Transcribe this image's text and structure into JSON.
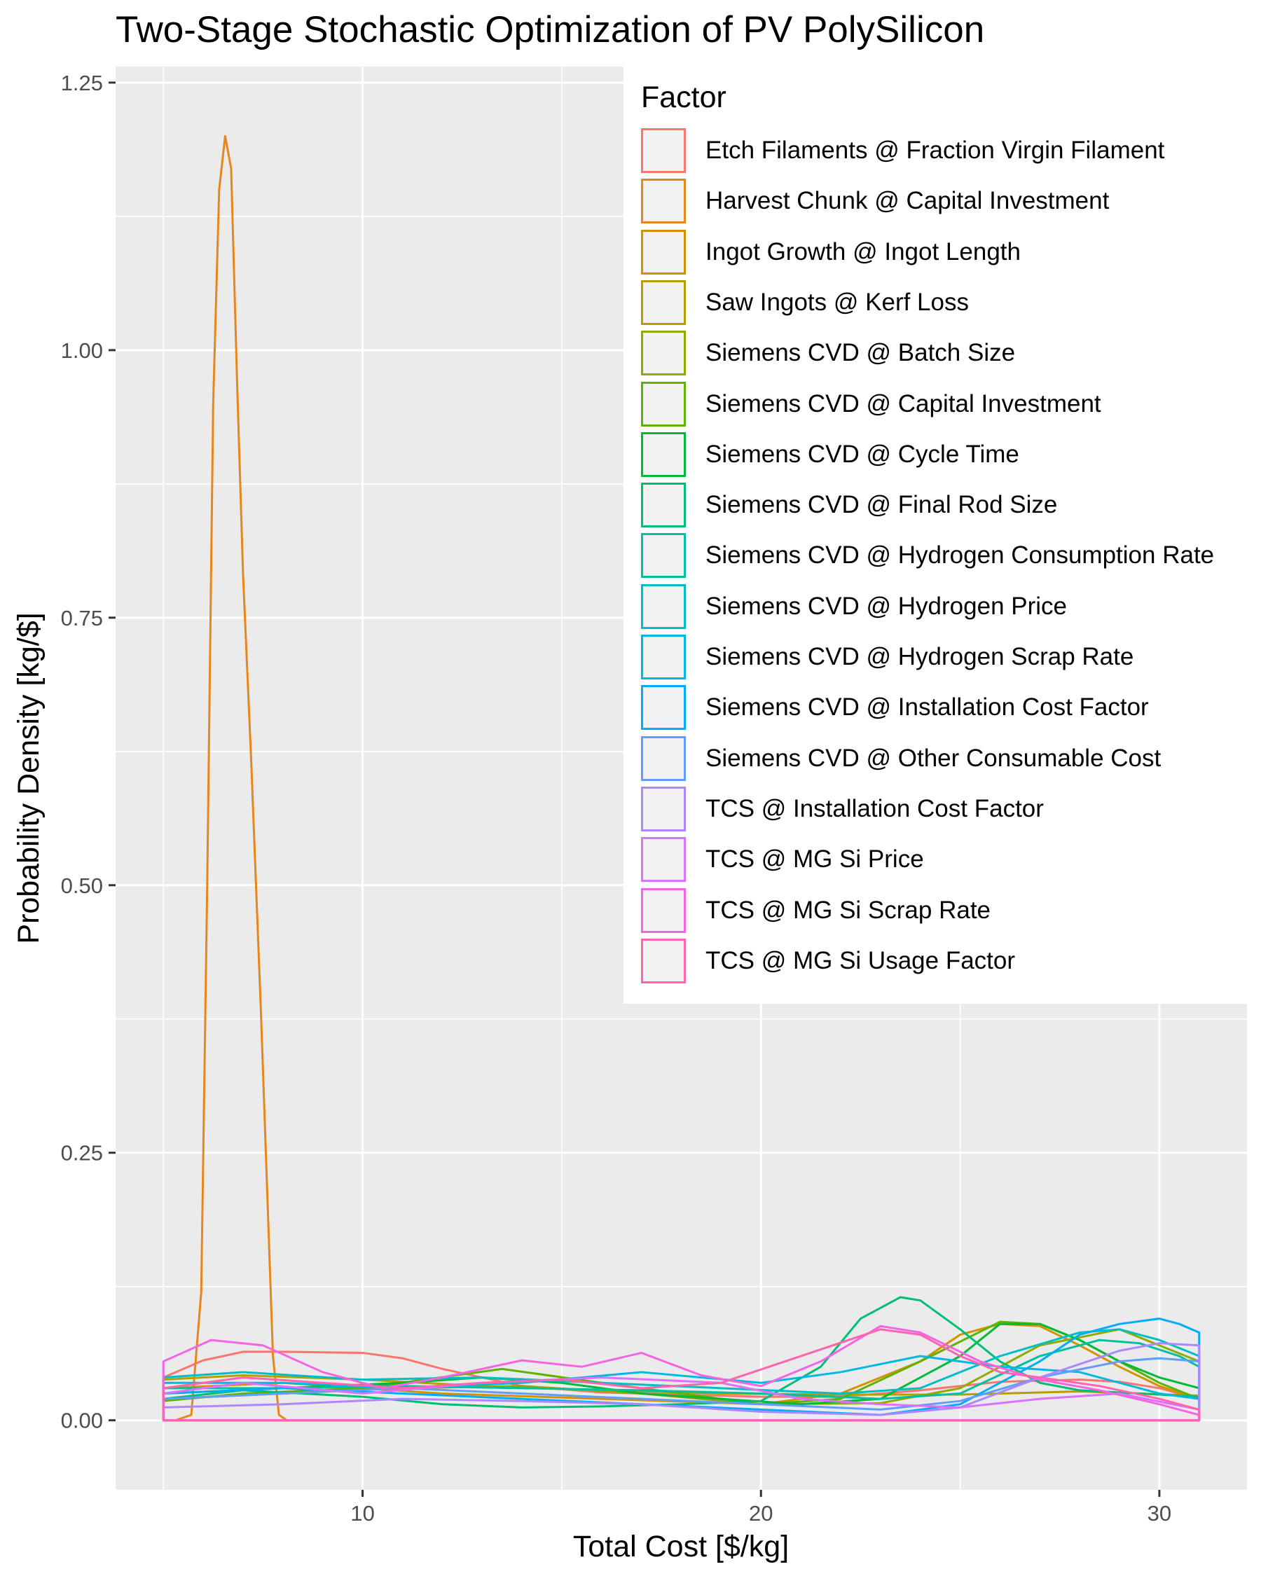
{
  "chart_data": {
    "type": "line",
    "title": "Two-Stage Stochastic Optimization of PV PolySilicon",
    "xlabel": "Total Cost [$/kg]",
    "ylabel": "Probability Density [kg/$]",
    "xlim": [
      3.8,
      32.2
    ],
    "ylim": [
      -0.065,
      1.265
    ],
    "x_ticks": [
      10,
      20,
      30
    ],
    "x_tick_labels": [
      "10",
      "20",
      "30"
    ],
    "y_ticks": [
      0,
      0.25,
      0.5,
      0.75,
      1.0,
      1.25
    ],
    "y_tick_labels": [
      "0.00",
      "0.25",
      "0.50",
      "0.75",
      "1.00",
      "1.25"
    ],
    "grid": true,
    "legend_title": "Factor",
    "legend_position": "top-right",
    "series": [
      {
        "name": "Etch Filaments @ Fraction Virgin Filament",
        "color": "#F8766D",
        "x": [
          5,
          6,
          7,
          8,
          10,
          11,
          12,
          14,
          16,
          18,
          20,
          22,
          24,
          26,
          28,
          29,
          30,
          31
        ],
        "y": [
          0.04,
          0.056,
          0.064,
          0.064,
          0.063,
          0.058,
          0.048,
          0.032,
          0.026,
          0.024,
          0.022,
          0.022,
          0.028,
          0.036,
          0.038,
          0.036,
          0.03,
          0.02
        ]
      },
      {
        "name": "Harvest Chunk @ Capital Investment",
        "color": "#E7861B",
        "x": [
          5.3,
          5.7,
          5.95,
          6.1,
          6.25,
          6.4,
          6.55,
          6.7,
          6.85,
          7.0,
          7.2,
          7.45,
          7.6,
          7.75,
          7.9,
          8.1
        ],
        "y": [
          0.0,
          0.005,
          0.12,
          0.5,
          0.95,
          1.15,
          1.2,
          1.17,
          0.97,
          0.79,
          0.62,
          0.38,
          0.22,
          0.06,
          0.005,
          0.0
        ]
      },
      {
        "name": "Ingot Growth @ Ingot Length",
        "color": "#D39200",
        "x": [
          5,
          8,
          12,
          16,
          20,
          22,
          24,
          25,
          26,
          27,
          28,
          29,
          30,
          31
        ],
        "y": [
          0.03,
          0.035,
          0.025,
          0.02,
          0.015,
          0.025,
          0.055,
          0.08,
          0.09,
          0.088,
          0.07,
          0.05,
          0.032,
          0.02
        ]
      },
      {
        "name": "Saw Ingots @ Kerf Loss",
        "color": "#B79F00",
        "x": [
          5,
          7,
          10,
          13,
          16,
          19,
          22,
          25,
          28,
          31
        ],
        "y": [
          0.038,
          0.042,
          0.038,
          0.032,
          0.028,
          0.025,
          0.024,
          0.024,
          0.027,
          0.023
        ]
      },
      {
        "name": "Siemens CVD @ Batch Size",
        "color": "#93AA00",
        "x": [
          5,
          8,
          11,
          14,
          17,
          20,
          23,
          25,
          27,
          29,
          30,
          31
        ],
        "y": [
          0.02,
          0.025,
          0.03,
          0.032,
          0.025,
          0.015,
          0.016,
          0.03,
          0.07,
          0.085,
          0.07,
          0.055
        ]
      },
      {
        "name": "Siemens CVD @ Capital Investment",
        "color": "#5EB300",
        "x": [
          5,
          7,
          10,
          13.5,
          16,
          20,
          22,
          24,
          26,
          27,
          28,
          29,
          30,
          31
        ],
        "y": [
          0.018,
          0.025,
          0.03,
          0.048,
          0.035,
          0.015,
          0.02,
          0.055,
          0.092,
          0.09,
          0.075,
          0.055,
          0.035,
          0.02
        ]
      },
      {
        "name": "Siemens CVD @ Cycle Time",
        "color": "#00BA38",
        "x": [
          5,
          8,
          11,
          13,
          15,
          17,
          19,
          21,
          23,
          25,
          26,
          27,
          28,
          29,
          30,
          31
        ],
        "y": [
          0.025,
          0.03,
          0.035,
          0.04,
          0.035,
          0.025,
          0.02,
          0.015,
          0.02,
          0.06,
          0.09,
          0.09,
          0.075,
          0.055,
          0.04,
          0.03
        ]
      },
      {
        "name": "Siemens CVD @ Final Rod Size",
        "color": "#00BF74",
        "x": [
          5,
          7,
          10,
          12,
          14,
          16,
          18,
          20,
          21.5,
          22.5,
          23.5,
          24,
          25,
          26,
          27,
          28,
          29,
          30,
          31
        ],
        "y": [
          0.02,
          0.028,
          0.022,
          0.015,
          0.012,
          0.013,
          0.015,
          0.018,
          0.05,
          0.095,
          0.115,
          0.112,
          0.085,
          0.055,
          0.035,
          0.028,
          0.026,
          0.024,
          0.022
        ]
      },
      {
        "name": "Siemens CVD @ Hydrogen Consumption Rate",
        "color": "#00C19F",
        "x": [
          5,
          8,
          11,
          14,
          17,
          20,
          23,
          25,
          27,
          28.5,
          29.5,
          30.5,
          31
        ],
        "y": [
          0.03,
          0.03,
          0.032,
          0.03,
          0.028,
          0.025,
          0.02,
          0.025,
          0.06,
          0.075,
          0.072,
          0.06,
          0.05
        ]
      },
      {
        "name": "Siemens CVD @ Hydrogen Price",
        "color": "#00BFC4",
        "x": [
          5,
          7,
          10,
          13,
          16,
          19,
          22,
          24,
          26,
          28,
          29,
          30,
          31
        ],
        "y": [
          0.04,
          0.045,
          0.038,
          0.04,
          0.035,
          0.03,
          0.025,
          0.03,
          0.06,
          0.082,
          0.085,
          0.075,
          0.06
        ]
      },
      {
        "name": "Siemens CVD @ Hydrogen Scrap Rate",
        "color": "#00B9E3",
        "x": [
          5,
          8,
          11,
          14,
          17,
          20,
          22,
          24,
          26,
          28,
          29,
          30,
          31
        ],
        "y": [
          0.035,
          0.035,
          0.03,
          0.035,
          0.045,
          0.035,
          0.045,
          0.06,
          0.05,
          0.045,
          0.035,
          0.025,
          0.02
        ]
      },
      {
        "name": "Siemens CVD @ Installation Cost Factor",
        "color": "#00ADFA",
        "x": [
          5,
          8,
          11,
          14,
          17,
          20,
          23,
          25,
          27,
          28,
          29,
          30,
          30.5,
          31
        ],
        "y": [
          0.025,
          0.03,
          0.025,
          0.02,
          0.015,
          0.01,
          0.005,
          0.015,
          0.055,
          0.08,
          0.09,
          0.095,
          0.09,
          0.082
        ]
      },
      {
        "name": "Siemens CVD @ Other Consumable Cost",
        "color": "#619CFF",
        "x": [
          5,
          8,
          11,
          14,
          17,
          20,
          23,
          25,
          27,
          29,
          30,
          31
        ],
        "y": [
          0.02,
          0.025,
          0.03,
          0.025,
          0.02,
          0.015,
          0.01,
          0.018,
          0.04,
          0.055,
          0.058,
          0.055
        ]
      },
      {
        "name": "TCS @ Installation Cost Factor",
        "color": "#AE87FF",
        "x": [
          5,
          8,
          11,
          14,
          17,
          20,
          23,
          25,
          27,
          29,
          30,
          31
        ],
        "y": [
          0.012,
          0.015,
          0.02,
          0.018,
          0.015,
          0.008,
          0.005,
          0.012,
          0.04,
          0.065,
          0.072,
          0.07
        ]
      },
      {
        "name": "TCS @ MG Si Price",
        "color": "#DB72FB",
        "x": [
          5,
          7,
          10,
          13,
          16,
          19,
          21,
          23,
          25,
          27,
          29,
          31
        ],
        "y": [
          0.025,
          0.035,
          0.025,
          0.035,
          0.04,
          0.035,
          0.02,
          0.015,
          0.012,
          0.02,
          0.025,
          0.01
        ]
      },
      {
        "name": "TCS @ MG Si Scrap Rate",
        "color": "#F564E3",
        "x": [
          5,
          6.2,
          7.5,
          9,
          10.5,
          12,
          14,
          15.5,
          17,
          18.5,
          20,
          21.5,
          23,
          24,
          25.5,
          27,
          28.5,
          30,
          31
        ],
        "y": [
          0.055,
          0.075,
          0.07,
          0.045,
          0.03,
          0.04,
          0.056,
          0.05,
          0.063,
          0.042,
          0.032,
          0.055,
          0.088,
          0.082,
          0.055,
          0.038,
          0.028,
          0.015,
          0.005
        ]
      },
      {
        "name": "TCS @ MG Si Usage Factor",
        "color": "#FF64B0",
        "x": [
          5,
          7,
          9,
          11,
          13,
          15,
          17,
          19,
          21,
          23,
          24,
          25,
          26,
          27,
          28.5,
          30,
          31
        ],
        "y": [
          0.03,
          0.04,
          0.035,
          0.03,
          0.035,
          0.038,
          0.03,
          0.035,
          0.06,
          0.085,
          0.08,
          0.06,
          0.045,
          0.04,
          0.032,
          0.02,
          0.01
        ]
      }
    ]
  }
}
